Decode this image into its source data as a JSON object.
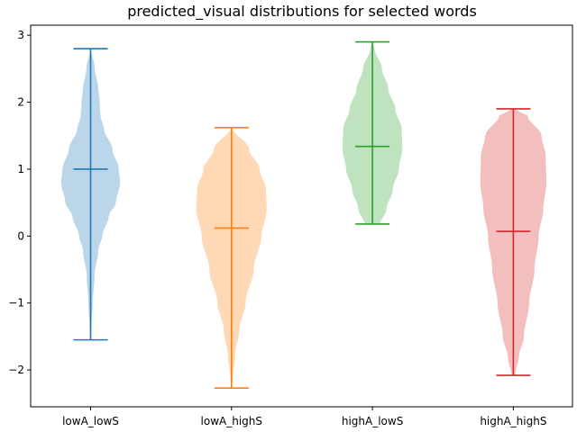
{
  "chart_data": {
    "type": "violin",
    "title": "predicted_visual distributions for selected words",
    "categories": [
      "lowA_lowS",
      "lowA_highS",
      "highA_lowS",
      "highA_highS"
    ],
    "ylim": [
      -2.55,
      3.15
    ],
    "yticks": [
      -2,
      -1,
      0,
      1,
      2,
      3
    ],
    "ytick_labels": [
      "−2",
      "−1",
      "0",
      "1",
      "2",
      "3"
    ],
    "grid": false,
    "series": [
      {
        "color": "#1f77b4",
        "min": -1.55,
        "max": 2.8,
        "median": 1.0,
        "density": [
          [
            -1.55,
            0.01
          ],
          [
            -1.3,
            0.03
          ],
          [
            -1.0,
            0.06
          ],
          [
            -0.6,
            0.11
          ],
          [
            -0.2,
            0.22
          ],
          [
            0.0,
            0.33
          ],
          [
            0.3,
            0.52
          ],
          [
            0.5,
            0.72
          ],
          [
            0.8,
            0.84
          ],
          [
            1.0,
            0.8
          ],
          [
            1.3,
            0.62
          ],
          [
            1.6,
            0.38
          ],
          [
            1.8,
            0.28
          ],
          [
            2.0,
            0.26
          ],
          [
            2.2,
            0.22
          ],
          [
            2.5,
            0.12
          ],
          [
            2.8,
            0.01
          ]
        ]
      },
      {
        "color": "#ff7f0e",
        "min": -2.27,
        "max": 1.62,
        "median": 0.12,
        "density": [
          [
            -2.27,
            0.01
          ],
          [
            -2.1,
            0.04
          ],
          [
            -1.8,
            0.1
          ],
          [
            -1.4,
            0.22
          ],
          [
            -1.0,
            0.4
          ],
          [
            -0.5,
            0.63
          ],
          [
            0.0,
            0.85
          ],
          [
            0.4,
            1.0
          ],
          [
            0.7,
            0.98
          ],
          [
            1.0,
            0.8
          ],
          [
            1.3,
            0.5
          ],
          [
            1.62,
            0.02
          ]
        ]
      },
      {
        "color": "#2ca02c",
        "min": 0.18,
        "max": 2.9,
        "median": 1.34,
        "density": [
          [
            0.18,
            0.22
          ],
          [
            0.4,
            0.4
          ],
          [
            0.7,
            0.58
          ],
          [
            1.0,
            0.75
          ],
          [
            1.3,
            0.85
          ],
          [
            1.6,
            0.83
          ],
          [
            1.9,
            0.65
          ],
          [
            2.2,
            0.45
          ],
          [
            2.5,
            0.27
          ],
          [
            2.8,
            0.06
          ],
          [
            2.9,
            0.01
          ]
        ]
      },
      {
        "color": "#d62728",
        "min": -2.08,
        "max": 1.9,
        "median": 0.07,
        "density": [
          [
            -2.08,
            0.05
          ],
          [
            -1.8,
            0.16
          ],
          [
            -1.5,
            0.3
          ],
          [
            -1.0,
            0.45
          ],
          [
            -0.5,
            0.6
          ],
          [
            0.0,
            0.72
          ],
          [
            0.4,
            0.85
          ],
          [
            0.8,
            0.94
          ],
          [
            1.2,
            0.92
          ],
          [
            1.5,
            0.8
          ],
          [
            1.8,
            0.4
          ],
          [
            1.9,
            0.02
          ]
        ]
      }
    ]
  }
}
